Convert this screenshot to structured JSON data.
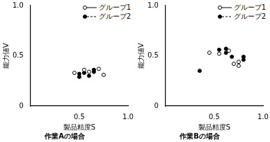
{
  "chart_data": [
    {
      "type": "scatter",
      "title": "作業Aの場合",
      "x_label": "製品精度S",
      "y_label": "能力値V",
      "xlim": [
        0,
        1
      ],
      "ylim": [
        0,
        1
      ],
      "xticks": [
        0.5,
        {
          "value": 1,
          "label": "1.0"
        }
      ],
      "yticks": [
        0,
        0.5,
        {
          "value": 1,
          "label": "1.0"
        }
      ],
      "grid": false,
      "legend": "upper right",
      "series": [
        {
          "name": "グループ1",
          "marker": "circle-open",
          "line_style": "solid",
          "color": "#000000",
          "x": [
            0.45,
            0.55,
            0.6,
            0.7,
            0.75
          ],
          "values": [
            0.33,
            0.36,
            0.34,
            0.37,
            0.31
          ]
        },
        {
          "name": "グループ2",
          "marker": "circle",
          "line_style": "dashed",
          "color": "#000000",
          "x": [
            0.5,
            0.5,
            0.55,
            0.6,
            0.65,
            0.65
          ],
          "values": [
            0.29,
            0.32,
            0.33,
            0.3,
            0.36,
            0.34
          ]
        }
      ]
    },
    {
      "type": "scatter",
      "title": "作業Bの場合",
      "x_label": "製品精度S",
      "y_label": "能力値V",
      "xlim": [
        0,
        1
      ],
      "ylim": [
        0,
        1
      ],
      "xticks": [
        0.5,
        {
          "value": 1,
          "label": "1.0"
        }
      ],
      "yticks": [
        0,
        0.5,
        {
          "value": 1,
          "label": "1.0"
        }
      ],
      "grid": false,
      "legend": "upper right",
      "series": [
        {
          "name": "グループ1",
          "marker": "circle-open",
          "line_style": "solid",
          "color": "#000000",
          "x": [
            0.45,
            0.55,
            0.65,
            0.7,
            0.75,
            0.75
          ],
          "values": [
            0.53,
            0.52,
            0.55,
            0.42,
            0.44,
            0.4
          ]
        },
        {
          "name": "グループ2",
          "marker": "circle",
          "line_style": "dashed",
          "color": "#000000",
          "x": [
            0.35,
            0.55,
            0.62,
            0.62,
            0.68,
            0.8,
            0.8
          ],
          "values": [
            0.35,
            0.56,
            0.57,
            0.53,
            0.49,
            0.49,
            0.46
          ]
        }
      ]
    }
  ]
}
